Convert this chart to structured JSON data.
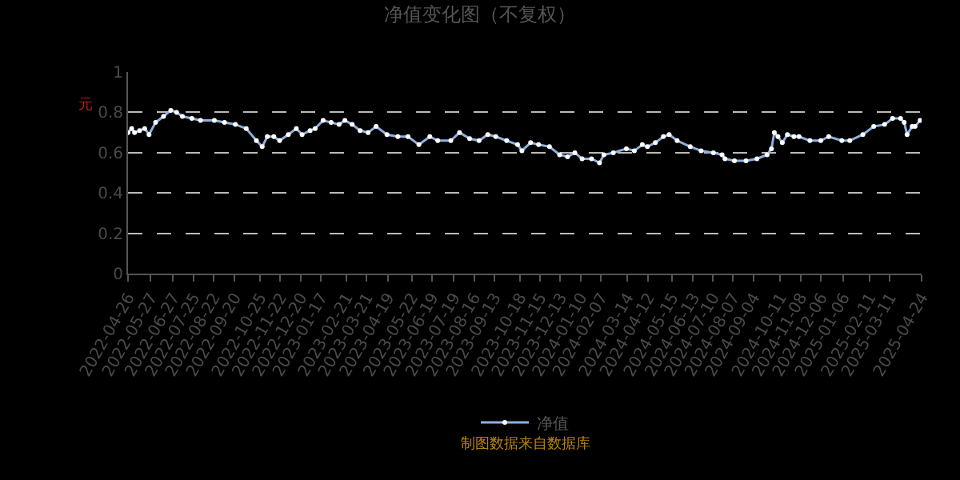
{
  "chart_data": {
    "type": "line",
    "title": "净值变化图（不复权）",
    "ylabel": "元",
    "annotations": [
      "制图数据来自数据库"
    ],
    "x": [
      "2022-04-26",
      "2022-05-01",
      "2022-05-05",
      "2022-05-12",
      "2022-05-19",
      "2022-05-25",
      "2022-06-03",
      "2022-06-14",
      "2022-06-24",
      "2022-07-02",
      "2022-07-10",
      "2022-07-23",
      "2022-08-04",
      "2022-08-23",
      "2022-09-06",
      "2022-09-21",
      "2022-10-06",
      "2022-10-20",
      "2022-10-28",
      "2022-11-04",
      "2022-11-13",
      "2022-11-21",
      "2022-12-03",
      "2022-12-14",
      "2022-12-22",
      "2023-01-02",
      "2023-01-09",
      "2023-01-20",
      "2023-01-31",
      "2023-02-11",
      "2023-02-19",
      "2023-03-01",
      "2023-03-12",
      "2023-03-23",
      "2023-04-03",
      "2023-04-18",
      "2023-05-03",
      "2023-05-17",
      "2023-06-01",
      "2023-06-16",
      "2023-06-27",
      "2023-07-15",
      "2023-07-27",
      "2023-08-10",
      "2023-08-23",
      "2023-09-04",
      "2023-09-15",
      "2023-09-30",
      "2023-10-15",
      "2023-10-21",
      "2023-11-02",
      "2023-11-13",
      "2023-11-28",
      "2023-12-12",
      "2023-12-23",
      "2024-01-02",
      "2024-01-12",
      "2024-01-25",
      "2024-02-05",
      "2024-02-11",
      "2024-02-24",
      "2024-03-13",
      "2024-03-24",
      "2024-04-04",
      "2024-04-11",
      "2024-04-22",
      "2024-05-03",
      "2024-05-11",
      "2024-05-22",
      "2024-06-09",
      "2024-06-24",
      "2024-07-11",
      "2024-07-23",
      "2024-07-27",
      "2024-08-09",
      "2024-08-25",
      "2024-09-09",
      "2024-09-23",
      "2024-09-29",
      "2024-10-03",
      "2024-10-08",
      "2024-10-14",
      "2024-10-21",
      "2024-10-30",
      "2024-11-06",
      "2024-11-21",
      "2024-12-06",
      "2024-12-17",
      "2025-01-04",
      "2025-01-15",
      "2025-02-02",
      "2025-02-17",
      "2025-03-04",
      "2025-03-15",
      "2025-03-26",
      "2025-03-31",
      "2025-04-04",
      "2025-04-11",
      "2025-04-15",
      "2025-04-22"
    ],
    "series": [
      {
        "name": "净值",
        "color": "#8fb0e0",
        "values": [
          0.7,
          0.72,
          0.7,
          0.71,
          0.72,
          0.69,
          0.75,
          0.78,
          0.81,
          0.8,
          0.78,
          0.77,
          0.76,
          0.76,
          0.75,
          0.74,
          0.72,
          0.66,
          0.63,
          0.68,
          0.68,
          0.66,
          0.69,
          0.72,
          0.69,
          0.71,
          0.72,
          0.76,
          0.75,
          0.74,
          0.76,
          0.74,
          0.71,
          0.7,
          0.73,
          0.69,
          0.68,
          0.68,
          0.64,
          0.68,
          0.66,
          0.66,
          0.7,
          0.67,
          0.66,
          0.69,
          0.68,
          0.66,
          0.64,
          0.61,
          0.65,
          0.64,
          0.63,
          0.59,
          0.58,
          0.6,
          0.57,
          0.57,
          0.55,
          0.59,
          0.6,
          0.62,
          0.61,
          0.64,
          0.63,
          0.65,
          0.68,
          0.69,
          0.66,
          0.63,
          0.61,
          0.6,
          0.59,
          0.57,
          0.56,
          0.56,
          0.57,
          0.59,
          0.62,
          0.7,
          0.68,
          0.65,
          0.69,
          0.68,
          0.68,
          0.66,
          0.66,
          0.68,
          0.66,
          0.66,
          0.69,
          0.73,
          0.74,
          0.77,
          0.77,
          0.75,
          0.69,
          0.73,
          0.73,
          0.76
        ]
      }
    ],
    "xlim": [
      "2022-04-26",
      "2025-04-24"
    ],
    "xticks": [
      "2022-04-26",
      "2022-05-27",
      "2022-06-27",
      "2022-07-25",
      "2022-08-22",
      "2022-09-20",
      "2022-10-25",
      "2022-11-22",
      "2022-12-20",
      "2023-01-17",
      "2023-02-21",
      "2023-03-21",
      "2023-04-19",
      "2023-05-22",
      "2023-06-19",
      "2023-07-19",
      "2023-08-16",
      "2023-09-13",
      "2023-10-18",
      "2023-11-15",
      "2023-12-13",
      "2024-01-10",
      "2024-02-07",
      "2024-03-14",
      "2024-04-12",
      "2024-05-15",
      "2024-06-13",
      "2024-07-10",
      "2024-08-07",
      "2024-09-04",
      "2024-10-11",
      "2024-11-08",
      "2024-12-06",
      "2025-01-06",
      "2025-02-11",
      "2025-03-11",
      "2025-04-24"
    ],
    "ylim": [
      0,
      1
    ],
    "yticks": [
      0,
      0.2,
      0.4,
      0.6,
      0.8,
      1
    ],
    "grid": "y",
    "legend": "bottom",
    "marker": "circle",
    "line_style": "solid"
  }
}
